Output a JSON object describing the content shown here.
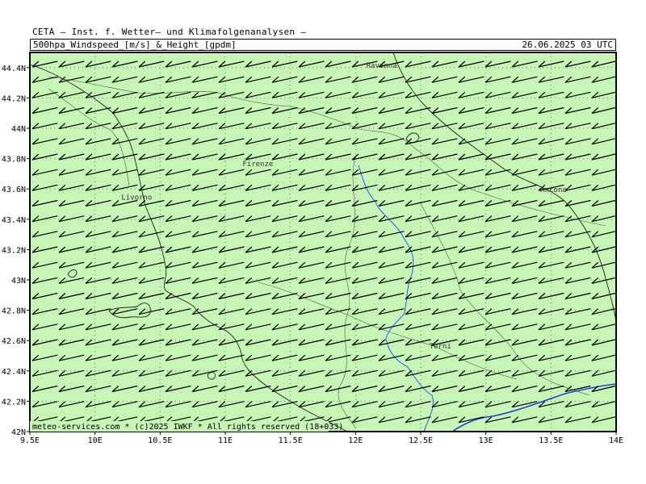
{
  "header": {
    "title": "CETA — Inst. f. Wetter— und Klimafolgenanalysen —",
    "subtitle": "500hpa_Windspeed_[m/s]_&_Height_[gpdm]",
    "datetime": "26.06.2025 03 UTC"
  },
  "map": {
    "lon_min": 9.5,
    "lon_max": 14.0,
    "lat_min": 42.0,
    "lat_max": 44.5,
    "x_ticks": [
      "9.5E",
      "10E",
      "10.5E",
      "11E",
      "11.5E",
      "12E",
      "12.5E",
      "13E",
      "13.5E",
      "14E"
    ],
    "x_tick_values": [
      9.5,
      10.0,
      10.5,
      11.0,
      11.5,
      12.0,
      12.5,
      13.0,
      13.5,
      14.0
    ],
    "y_ticks": [
      "42N",
      "42.2N",
      "42.4N",
      "42.6N",
      "42.8N",
      "43N",
      "43.2N",
      "43.4N",
      "43.6N",
      "43.8N",
      "44N",
      "44.2N",
      "44.4N"
    ],
    "y_tick_values": [
      42.0,
      42.2,
      42.4,
      42.6,
      42.8,
      43.0,
      43.2,
      43.4,
      43.6,
      43.8,
      44.0,
      44.2,
      44.4
    ],
    "cities": [
      {
        "name": "Ravenna",
        "lon": 12.2,
        "lat": 44.42
      },
      {
        "name": "Firenze",
        "lon": 11.25,
        "lat": 43.77
      },
      {
        "name": "Livorno",
        "lon": 10.32,
        "lat": 43.55
      },
      {
        "name": "Ancona",
        "lon": 13.52,
        "lat": 43.6
      },
      {
        "name": "Terni",
        "lon": 12.65,
        "lat": 42.57
      }
    ],
    "wind_barb_rows": 24,
    "wind_barb_cols": 22,
    "credit": "meteo-services.com * (c)2025 IWKF * All rights reserved (18+033)",
    "colors": {
      "fill": "#c6f5b6",
      "grid": "#666666",
      "coast": "#222222",
      "border": "#555555",
      "river": "#1f5fff",
      "height_contour": "#1f45d8",
      "barb": "#000000"
    }
  }
}
